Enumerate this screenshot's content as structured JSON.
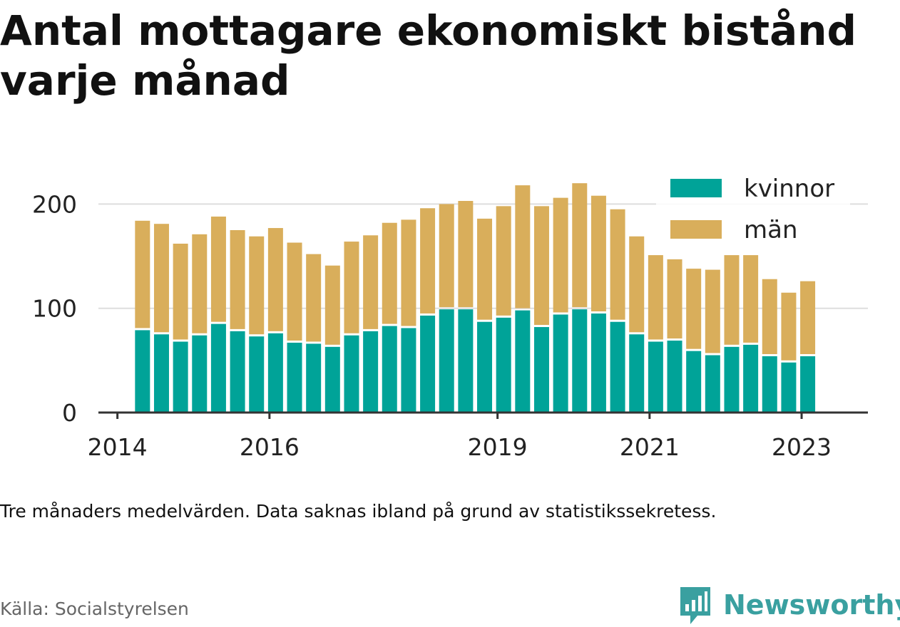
{
  "title": "Antal mottagare ekonomiskt bistånd varje månad",
  "caption": "Tre månaders medelvärden. Data saknas ibland på grund av statistikssekretess.",
  "source": "Källa: Socialstyrelsen",
  "brand": "Newsworthy",
  "colors": {
    "kvinnor": "#00a398",
    "man": "#d9ae5b",
    "grid": "#dddddd",
    "axis": "#333333",
    "text": "#222222",
    "brand": "#3aa0a0"
  },
  "chart_data": {
    "type": "bar",
    "stacked": true,
    "title": "",
    "xlabel": "",
    "ylabel": "",
    "ylim": [
      0,
      200
    ],
    "y_ticks": [
      0,
      100,
      200
    ],
    "x_ticks": [
      {
        "label": "2014",
        "x": 2014.0
      },
      {
        "label": "2016",
        "x": 2016.0
      },
      {
        "label": "2019",
        "x": 2019.0
      },
      {
        "label": "2021",
        "x": 2021.0
      },
      {
        "label": "2023",
        "x": 2023.0
      }
    ],
    "x": [
      2014.33,
      2014.58,
      2014.83,
      2015.08,
      2015.33,
      2015.58,
      2015.83,
      2016.08,
      2016.33,
      2016.58,
      2016.83,
      2017.08,
      2017.33,
      2017.58,
      2017.83,
      2018.08,
      2018.33,
      2018.58,
      2018.83,
      2019.08,
      2019.33,
      2019.58,
      2019.83,
      2020.08,
      2020.33,
      2020.58,
      2020.83,
      2021.08,
      2021.33,
      2021.58,
      2021.83,
      2022.08,
      2022.33,
      2022.58,
      2022.83,
      2023.08
    ],
    "series": [
      {
        "name": "kvinnor",
        "values": [
          79,
          75,
          68,
          74,
          85,
          78,
          73,
          76,
          67,
          66,
          63,
          74,
          78,
          83,
          81,
          93,
          99,
          99,
          87,
          91,
          98,
          82,
          94,
          99,
          95,
          87,
          75,
          68,
          69,
          59,
          55,
          63,
          65,
          54,
          48,
          54
        ]
      },
      {
        "name": "män",
        "values": [
          105,
          106,
          94,
          97,
          103,
          97,
          96,
          101,
          96,
          86,
          78,
          90,
          92,
          99,
          104,
          103,
          101,
          104,
          99,
          107,
          120,
          116,
          112,
          121,
          113,
          108,
          94,
          83,
          78,
          79,
          82,
          88,
          86,
          74,
          67,
          72
        ]
      }
    ],
    "legend": {
      "position": "top-right",
      "entries": [
        "kvinnor",
        "män"
      ]
    }
  }
}
